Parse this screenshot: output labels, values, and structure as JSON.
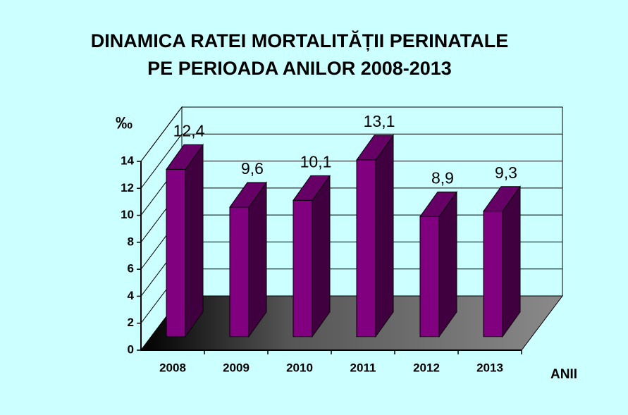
{
  "chart_data": {
    "type": "bar3d",
    "title": [
      "DINAMICA RATEI MORTALITĂȚII PERINATALE",
      "PE PERIOADA  ANILOR 2008-2013"
    ],
    "y_label": "‰",
    "x_label": "ANII",
    "categories": [
      "2008",
      "2009",
      "2010",
      "2011",
      "2012",
      "2013"
    ],
    "values": [
      12.4,
      9.6,
      10.1,
      13.1,
      8.9,
      9.3
    ],
    "value_labels": [
      "12,4",
      "9,6",
      "10,1",
      "13,1",
      "8,9",
      "9,3"
    ],
    "color": "#800080",
    "ylim": [
      0,
      14
    ],
    "yticks": [
      0,
      2,
      4,
      6,
      8,
      10,
      12,
      14
    ],
    "grid": true
  }
}
